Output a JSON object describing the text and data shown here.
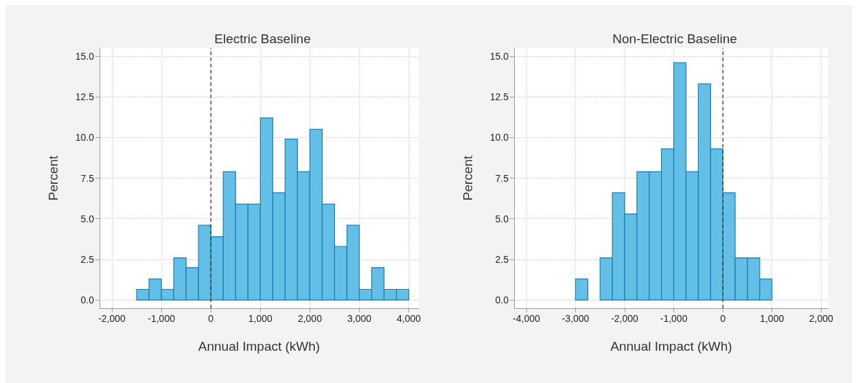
{
  "chart_data": [
    {
      "type": "histogram",
      "title": "Electric Baseline",
      "xlabel": "Annual Impact (kWh)",
      "ylabel": "Percent",
      "color": "#63bfe5",
      "bins": [
        -1500,
        -1250,
        -1000,
        -750,
        -500,
        -250,
        0,
        250,
        500,
        750,
        1000,
        1250,
        1500,
        1750,
        2000,
        2250,
        2500,
        2750,
        3000,
        3250,
        3500,
        3750,
        4000
      ],
      "values": [
        0.66,
        1.3,
        0.66,
        2.6,
        2.0,
        4.6,
        3.9,
        7.9,
        5.9,
        5.9,
        11.2,
        6.6,
        9.9,
        7.9,
        10.5,
        5.9,
        3.3,
        4.6,
        0.66,
        2.0,
        0.66,
        0.66
      ],
      "xlim": [
        -2250,
        4200
      ],
      "xticks": [
        {
          "value": -2000,
          "label": "-2,000"
        },
        {
          "value": -1000,
          "label": "-1,000"
        },
        0,
        {
          "value": 1000,
          "label": "1,000"
        },
        {
          "value": 2000,
          "label": "2,000"
        },
        {
          "value": 3000,
          "label": "3,000"
        },
        {
          "value": 4000,
          "label": "4,000"
        }
      ],
      "ylim": [
        -0.5,
        15.5
      ],
      "yticks": [
        {
          "value": 0,
          "label": "0.0"
        },
        2.5,
        {
          "value": 5,
          "label": "5.0"
        },
        7.5,
        {
          "value": 10,
          "label": "10.0"
        },
        12.5,
        {
          "value": 15,
          "label": "15.0"
        }
      ],
      "grid": true,
      "ref_lines": [
        {
          "axis": "x",
          "value": 0,
          "label": null,
          "color": "#333333",
          "line_style": "dashed"
        }
      ]
    },
    {
      "type": "histogram",
      "title": "Non-Electric Baseline",
      "xlabel": "Annual Impact (kWh)",
      "ylabel": "Percent",
      "color": "#63bfe5",
      "bins": [
        -3000,
        -2750,
        -2500,
        -2250,
        -2000,
        -1750,
        -1500,
        -1250,
        -1000,
        -750,
        -500,
        -250,
        0,
        250,
        500,
        750,
        1000
      ],
      "values": [
        1.3,
        0,
        2.6,
        6.6,
        5.3,
        7.9,
        7.9,
        9.3,
        14.6,
        7.9,
        13.3,
        9.3,
        6.6,
        2.6,
        2.6,
        1.3
      ],
      "xlim": [
        -4250,
        2150
      ],
      "xticks": [
        {
          "value": -4000,
          "label": "-4,000"
        },
        {
          "value": -3000,
          "label": "-3,000"
        },
        {
          "value": -2000,
          "label": "-2,000"
        },
        {
          "value": -1000,
          "label": "-1,000"
        },
        0,
        {
          "value": 1000,
          "label": "1,000"
        },
        {
          "value": 2000,
          "label": "2,000"
        }
      ],
      "ylim": [
        -0.5,
        15.5
      ],
      "yticks": [
        {
          "value": 0,
          "label": "0.0"
        },
        2.5,
        {
          "value": 5,
          "label": "5.0"
        },
        7.5,
        {
          "value": 10,
          "label": "10.0"
        },
        12.5,
        {
          "value": 15,
          "label": "15.0"
        }
      ],
      "grid": true,
      "ref_lines": [
        {
          "axis": "x",
          "value": 0,
          "label": null,
          "color": "#333333",
          "line_style": "dashed"
        }
      ]
    }
  ]
}
